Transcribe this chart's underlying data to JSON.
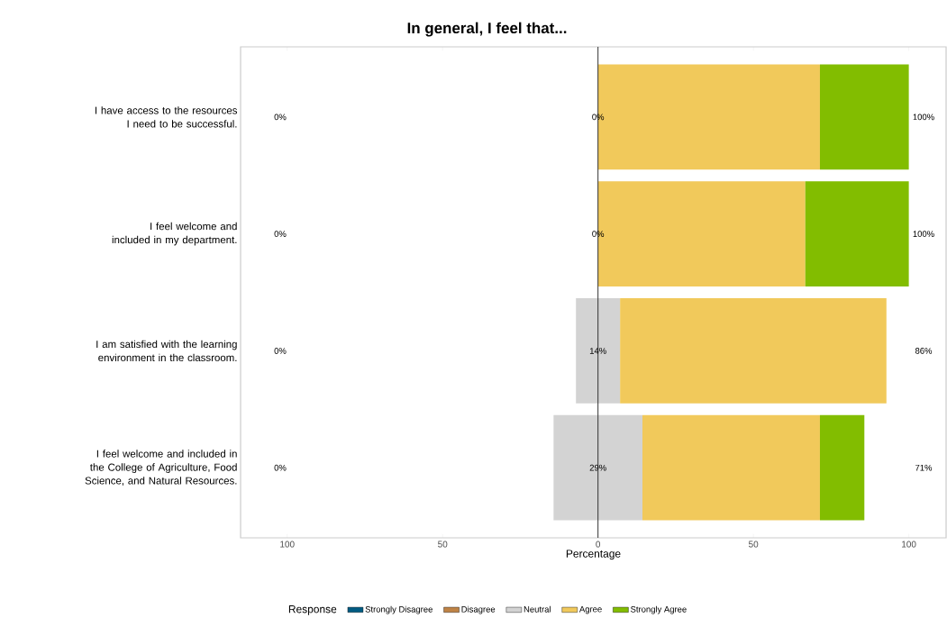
{
  "chart_data": {
    "type": "bar",
    "orientation": "horizontal",
    "title": "In general, I feel that...",
    "xlabel": "Percentage",
    "legend_title": "Response",
    "legend": "bottom",
    "grid": false,
    "categories": [
      "I have access to the resources I need to be successful.",
      "I feel welcome and included in my department.",
      "I am satisfied with the learning environment in the classroom.",
      "I feel welcome and included in the College of Agriculture, Food Science, and Natural Resources."
    ],
    "series": [
      {
        "name": "Strongly Disagree",
        "color": "#005b82",
        "values": [
          0,
          0,
          0,
          0
        ]
      },
      {
        "name": "Disagree",
        "color": "#bf8345",
        "values": [
          0,
          0,
          0,
          0
        ]
      },
      {
        "name": "Neutral",
        "color": "#d3d3d3",
        "base": [
          null,
          null,
          -7.1,
          -14.3
        ],
        "values": [
          0,
          0,
          14.2,
          28.6
        ],
        "value_labels": [
          "0%",
          "0%",
          "14%",
          "29%"
        ]
      },
      {
        "name": "Agree",
        "color": "#f1c95b",
        "base": [
          0,
          0,
          7.1,
          14.3
        ],
        "values": [
          71.4,
          66.7,
          85.7,
          57.1
        ]
      },
      {
        "name": "Strongly Agree",
        "color": "#82bd00",
        "base": [
          71.4,
          66.7,
          null,
          71.4
        ],
        "values": [
          28.6,
          33.3,
          0,
          14.3
        ]
      }
    ],
    "xlim": [
      -115,
      112
    ],
    "xticks": [
      {
        "value": -100,
        "label": "100"
      },
      {
        "value": -50,
        "label": "50"
      },
      0,
      50,
      100
    ],
    "ref_lines": [
      {
        "axis": "x",
        "value": 0,
        "color": "#333333"
      }
    ],
    "annotations": [
      "0%",
      "100%",
      "0%",
      "100%",
      "0%",
      "86%",
      "0%",
      "71%"
    ]
  }
}
